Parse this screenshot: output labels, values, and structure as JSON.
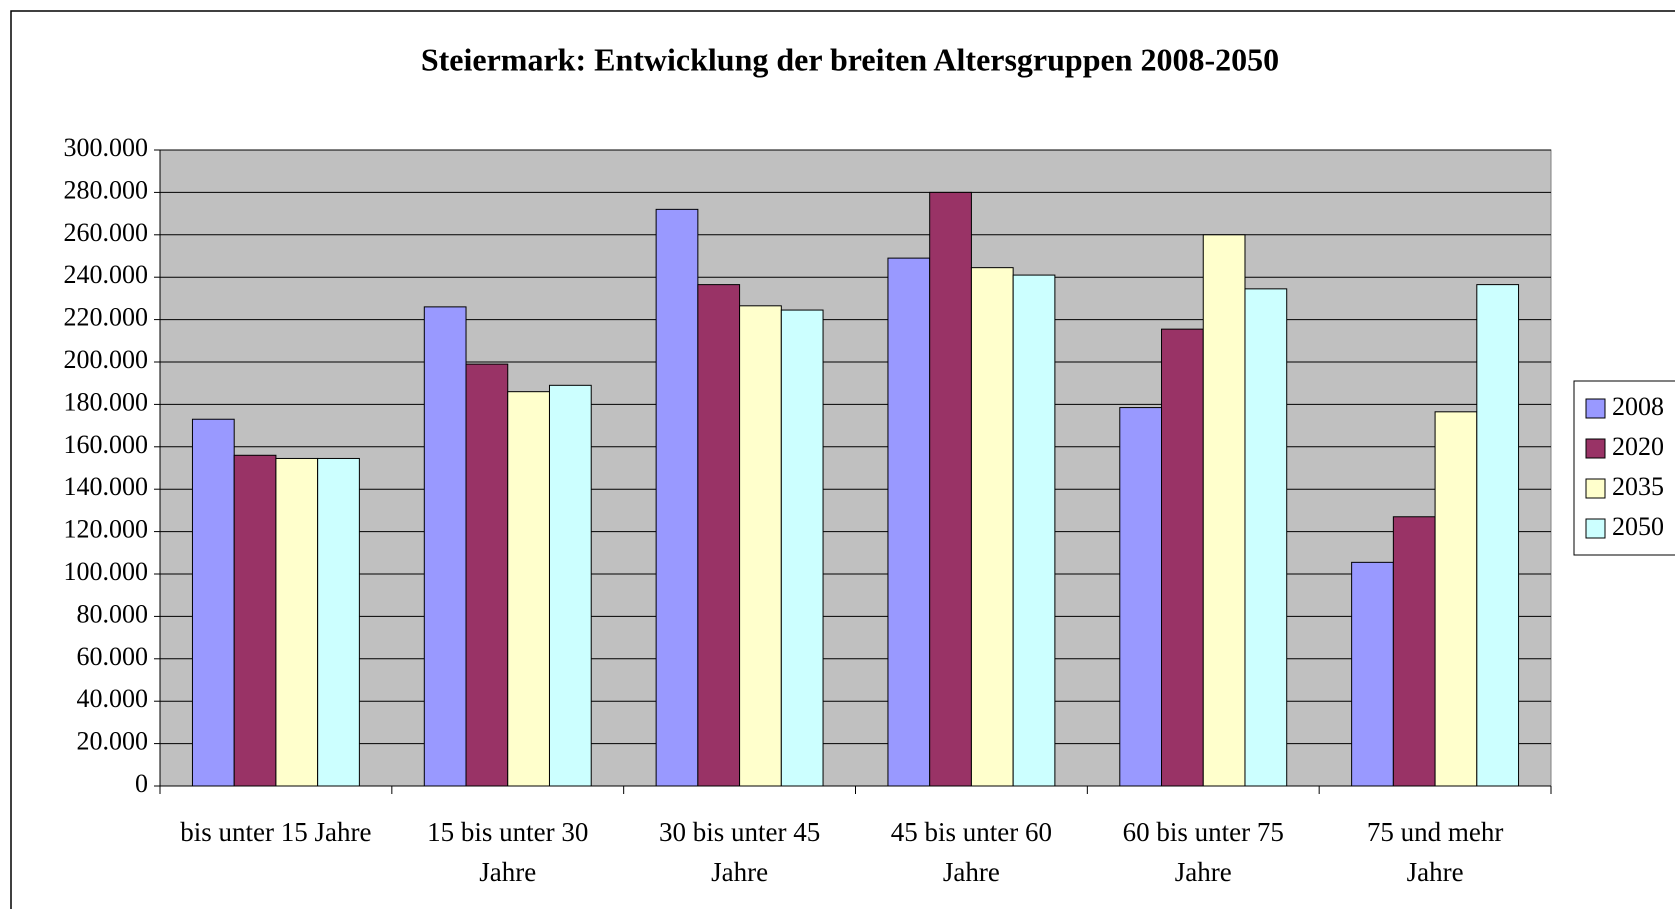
{
  "chart_data": {
    "type": "bar",
    "title": "Steiermark: Entwicklung der breiten Altersgruppen 2008-2050",
    "categories": [
      "bis unter 15 Jahre",
      "15 bis unter 30 Jahre",
      "30 bis unter 45 Jahre",
      "45 bis unter 60 Jahre",
      "60 bis unter 75 Jahre",
      "75 und mehr Jahre"
    ],
    "series": [
      {
        "name": "2008",
        "color": "#9999ff",
        "values": [
          173000,
          226000,
          272000,
          249000,
          178500,
          105500
        ]
      },
      {
        "name": "2020",
        "color": "#993366",
        "values": [
          156000,
          199000,
          236500,
          280000,
          215500,
          127000
        ]
      },
      {
        "name": "2035",
        "color": "#ffffcc",
        "values": [
          154500,
          186000,
          226500,
          244500,
          260000,
          176500
        ]
      },
      {
        "name": "2050",
        "color": "#ccffff",
        "values": [
          154500,
          189000,
          224500,
          241000,
          234500,
          236500
        ]
      }
    ],
    "ylim": [
      0,
      300000
    ],
    "yticks": [
      0,
      {
        "value": 20000,
        "label": "20.000"
      },
      {
        "value": 40000,
        "label": "40.000"
      },
      {
        "value": 60000,
        "label": "60.000"
      },
      {
        "value": 80000,
        "label": "80.000"
      },
      {
        "value": 100000,
        "label": "100.000"
      },
      {
        "value": 120000,
        "label": "120.000"
      },
      {
        "value": 140000,
        "label": "140.000"
      },
      {
        "value": 160000,
        "label": "160.000"
      },
      {
        "value": 180000,
        "label": "180.000"
      },
      {
        "value": 200000,
        "label": "200.000"
      },
      {
        "value": 220000,
        "label": "220.000"
      },
      {
        "value": 240000,
        "label": "240.000"
      },
      {
        "value": 260000,
        "label": "260.000"
      },
      {
        "value": 280000,
        "label": "280.000"
      },
      {
        "value": 300000,
        "label": "300.000"
      }
    ],
    "grid": true,
    "legend": "right",
    "plot_background": "#c0c0c0"
  }
}
